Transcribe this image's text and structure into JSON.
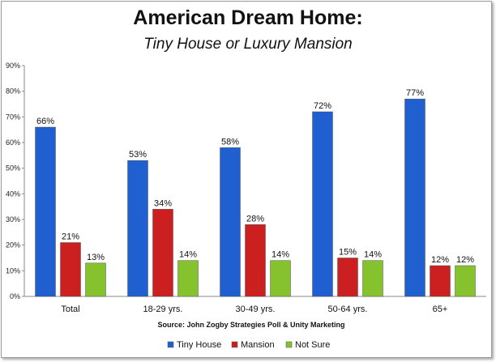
{
  "chart_data": {
    "type": "bar",
    "title": "American Dream Home:",
    "subtitle": "Tiny House or Luxury Mansion",
    "categories": [
      "Total",
      "18-29 yrs.",
      "30-49 yrs.",
      "50-64 yrs.",
      "65+"
    ],
    "series": [
      {
        "name": "Tiny House",
        "color": "#1f5fd0",
        "values": [
          66,
          53,
          58,
          72,
          77
        ],
        "labels": [
          "66%",
          "53%",
          "58%",
          "72%",
          "77%"
        ]
      },
      {
        "name": "Mansion",
        "color": "#cc1f1f",
        "values": [
          21,
          34,
          28,
          15,
          12
        ],
        "labels": [
          "21%",
          "34%",
          "28%",
          "15%",
          "12%"
        ]
      },
      {
        "name": "Not Sure",
        "color": "#86c22e",
        "values": [
          13,
          14,
          14,
          14,
          12
        ],
        "labels": [
          "13%",
          "14%",
          "14%",
          "14%",
          "12%"
        ]
      }
    ],
    "ylim": [
      0,
      90
    ],
    "yticks": [
      "0%",
      "10%",
      "20%",
      "30%",
      "40%",
      "50%",
      "60%",
      "70%",
      "80%",
      "90%"
    ],
    "source": "Source: John Zogby Strategies Poll & Unity Marketing",
    "legend": "bottom-right",
    "grid": false
  }
}
